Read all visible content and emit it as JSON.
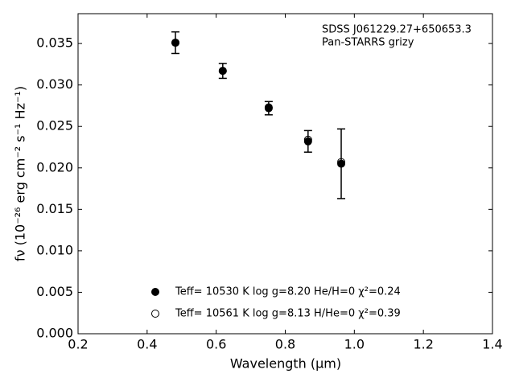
{
  "chart_data": {
    "type": "scatter",
    "annotation": [
      "SDSS J061229.27+650653.3",
      "Pan-STARRS grizy"
    ],
    "xlabel": "Wavelength (μm)",
    "ylabel": "fν (10⁻²⁶ erg cm⁻² s⁻¹ Hz⁻¹)",
    "x": [
      0.482,
      0.619,
      0.752,
      0.866,
      0.962
    ],
    "series": [
      {
        "name": "Teff= 10530 K  log g=8.20  He/H=0  χ²=0.24",
        "color": "#000000",
        "filled": true,
        "values": [
          0.0351,
          0.0317,
          0.0272,
          0.0232,
          0.0205
        ],
        "errors": [
          0.0013,
          0.0009,
          0.0008,
          0.0013,
          0.0042
        ]
      },
      {
        "name": "Teff= 10561 K  log g=8.13  H/He=0  χ²=0.39",
        "color": "#000000",
        "filled": false,
        "values": [
          0.0351,
          0.0317,
          0.0273,
          0.0234,
          0.0207
        ]
      }
    ],
    "xlim": [
      0.2,
      1.4
    ],
    "xticks": [
      0.2,
      0.4,
      0.6,
      0.8,
      {
        "value": 1,
        "label": "1.0"
      },
      1.2,
      1.4
    ],
    "ylim": [
      0,
      0.0386
    ],
    "yticks": [
      {
        "value": 0,
        "label": "0.000"
      },
      0.005,
      {
        "value": 0.01,
        "label": "0.010"
      },
      0.015,
      {
        "value": 0.02,
        "label": "0.020"
      },
      0.025,
      {
        "value": 0.03,
        "label": "0.030"
      },
      0.035
    ],
    "legend": "lower center",
    "grid": false
  }
}
